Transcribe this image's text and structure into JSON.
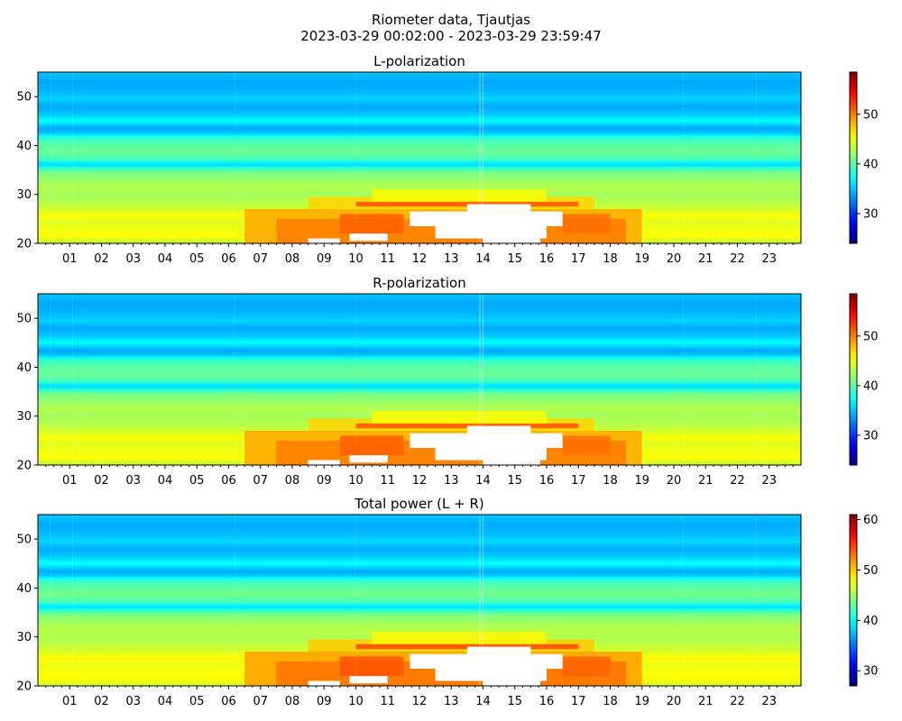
{
  "figure": {
    "title_line1": "Riometer data, Tjautjas",
    "title_line2": "2023-03-29 00:02:00 - 2023-03-29 23:59:47"
  },
  "chart_data": [
    {
      "type": "heatmap",
      "title": "L-polarization",
      "x_range": [
        0,
        24
      ],
      "x_tick_labels": [
        "01",
        "02",
        "03",
        "04",
        "05",
        "06",
        "07",
        "08",
        "09",
        "10",
        "11",
        "12",
        "13",
        "14",
        "15",
        "16",
        "17",
        "18",
        "19",
        "20",
        "21",
        "22",
        "23"
      ],
      "y_range": [
        20,
        55
      ],
      "y_ticks": [
        20,
        30,
        40,
        50
      ],
      "colorbar": {
        "colormap": "jet",
        "range": [
          24,
          58.5
        ],
        "ticks": [
          30,
          40,
          50
        ]
      },
      "saturated_region": {
        "color": "#ffffff",
        "x_span": [
          9.5,
          17.5
        ],
        "y_span": [
          20,
          28
        ]
      }
    },
    {
      "type": "heatmap",
      "title": "R-polarization",
      "x_range": [
        0,
        24
      ],
      "x_tick_labels": [
        "01",
        "02",
        "03",
        "04",
        "05",
        "06",
        "07",
        "08",
        "09",
        "10",
        "11",
        "12",
        "13",
        "14",
        "15",
        "16",
        "17",
        "18",
        "19",
        "20",
        "21",
        "22",
        "23"
      ],
      "y_range": [
        20,
        55
      ],
      "y_ticks": [
        20,
        30,
        40,
        50
      ],
      "colorbar": {
        "colormap": "jet",
        "range": [
          24,
          58.5
        ],
        "ticks": [
          30,
          40,
          50
        ]
      },
      "saturated_region": {
        "color": "#ffffff",
        "x_span": [
          9.5,
          17.5
        ],
        "y_span": [
          20,
          28
        ]
      }
    },
    {
      "type": "heatmap",
      "title": "Total power (L + R)",
      "x_range": [
        0,
        24
      ],
      "x_tick_labels": [
        "01",
        "02",
        "03",
        "04",
        "05",
        "06",
        "07",
        "08",
        "09",
        "10",
        "11",
        "12",
        "13",
        "14",
        "15",
        "16",
        "17",
        "18",
        "19",
        "20",
        "21",
        "22",
        "23"
      ],
      "y_range": [
        20,
        55
      ],
      "y_ticks": [
        20,
        30,
        40,
        50
      ],
      "colorbar": {
        "colormap": "jet",
        "range": [
          27,
          61
        ],
        "ticks": [
          30,
          40,
          50,
          60
        ]
      },
      "saturated_region": {
        "color": "#ffffff",
        "x_span": [
          9.5,
          17.5
        ],
        "y_span": [
          20,
          28
        ]
      }
    }
  ]
}
